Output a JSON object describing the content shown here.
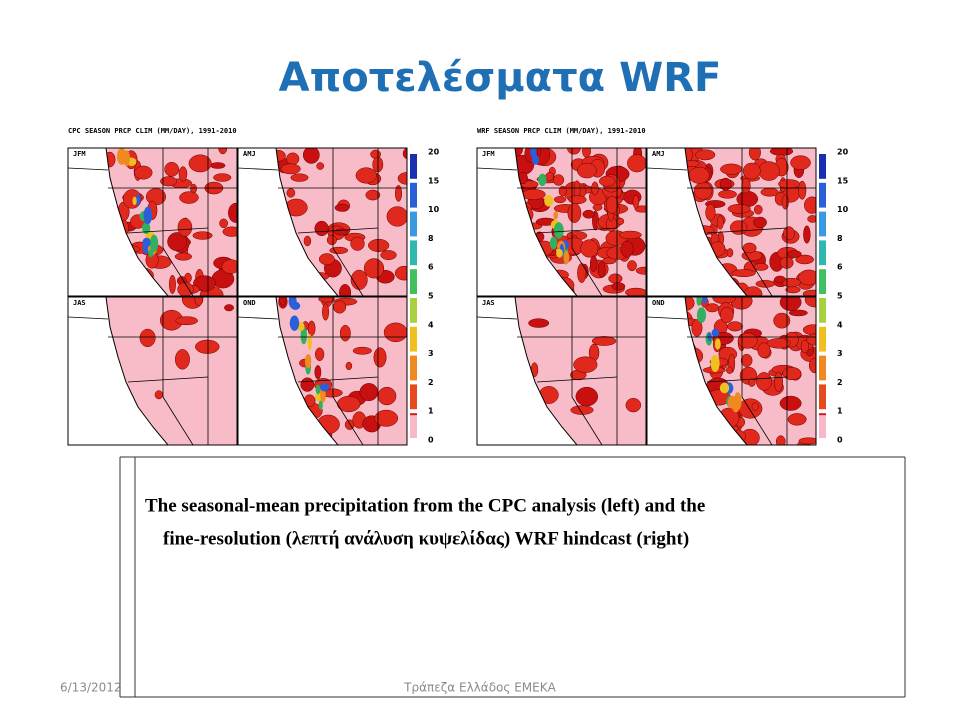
{
  "header": {
    "title": "Αποτελέσματα WRF"
  },
  "figures": [
    {
      "title": "CPC SEASON PRCP CLIM (MM/DAY), 1991-2010",
      "panels": [
        "JFM",
        "AMJ",
        "JAS",
        "OND"
      ],
      "colorbar": [
        20,
        15,
        10,
        8,
        6,
        5,
        4,
        3,
        2,
        1,
        0
      ]
    },
    {
      "title": "WRF SEASON PRCP CLIM (MM/DAY), 1991-2010",
      "panels": [
        "JFM",
        "AMJ",
        "JAS",
        "OND"
      ],
      "colorbar": [
        20,
        15,
        10,
        8,
        6,
        5,
        4,
        3,
        2,
        1,
        0
      ]
    }
  ],
  "caption": {
    "lines": [
      "The seasonal-mean precipitation from the CPC analysis (left) and the",
      "fine-resolution (λεπτή ανάλυση κυψελίδας) WRF hindcast (right)"
    ]
  },
  "footer": {
    "date": "6/13/2012",
    "source": "Τράπεζα Ελλάδος ΕΜΕΚΑ"
  }
}
